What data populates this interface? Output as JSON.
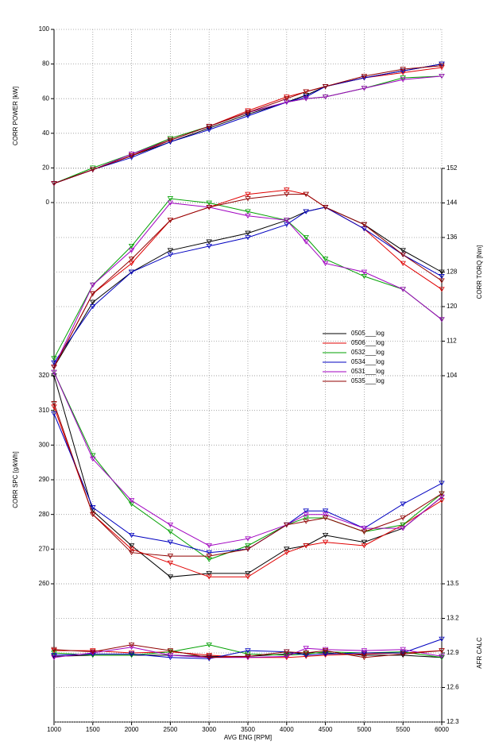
{
  "chart_data": [
    {
      "type": "line",
      "ylabel": "CORR POWER [kW]",
      "side": "left",
      "ylim": [
        0,
        100
      ],
      "yticks": [
        0,
        20,
        40,
        60,
        80,
        100
      ],
      "x": [
        1000,
        1500,
        2000,
        2500,
        3000,
        3500,
        4000,
        4250,
        4500,
        5000,
        5500,
        6000
      ],
      "series": [
        {
          "name": "0505___log",
          "color": "#000000",
          "values": [
            11,
            19,
            27,
            35,
            43,
            51,
            58,
            62,
            67,
            72,
            76,
            80
          ]
        },
        {
          "name": "0506___log",
          "color": "#e00000",
          "values": [
            11,
            19,
            27,
            37,
            44,
            53,
            61,
            64,
            67,
            72,
            75,
            78
          ]
        },
        {
          "name": "0532___log",
          "color": "#00a000",
          "values": [
            11,
            20,
            28,
            37,
            44,
            52,
            58,
            60,
            61,
            66,
            72,
            73
          ]
        },
        {
          "name": "0534___log",
          "color": "#0000c0",
          "values": [
            11,
            19,
            26,
            35,
            42,
            50,
            58,
            61,
            67,
            72,
            76,
            80
          ]
        },
        {
          "name": "0531___log",
          "color": "#a000c0",
          "values": [
            11,
            19,
            28,
            36,
            44,
            52,
            58,
            60,
            61,
            66,
            71,
            73
          ]
        },
        {
          "name": "0535___log",
          "color": "#900000",
          "values": [
            11,
            19,
            27,
            36,
            44,
            52,
            60,
            64,
            67,
            73,
            77,
            79
          ]
        }
      ]
    },
    {
      "type": "line",
      "ylabel": "CORR TORQ [Nm]",
      "side": "right",
      "ylim": [
        104,
        152
      ],
      "yticks": [
        104,
        112,
        120,
        128,
        136,
        144,
        152
      ],
      "x": [
        1000,
        1500,
        2000,
        2500,
        3000,
        3500,
        4000,
        4250,
        4500,
        5000,
        5500,
        6000
      ],
      "series": [
        {
          "name": "0505___log",
          "color": "#000000",
          "values": [
            106,
            121,
            128,
            133,
            135,
            137,
            140,
            142,
            143,
            139,
            133,
            128
          ]
        },
        {
          "name": "0506___log",
          "color": "#e00000",
          "values": [
            106,
            123,
            130,
            140,
            143,
            146,
            147,
            146,
            143,
            138,
            130,
            124
          ]
        },
        {
          "name": "0532___log",
          "color": "#00a000",
          "values": [
            108,
            125,
            134,
            145,
            144,
            142,
            140,
            136,
            131,
            127,
            124,
            117
          ]
        },
        {
          "name": "0534___log",
          "color": "#0000c0",
          "values": [
            107,
            120,
            128,
            132,
            134,
            136,
            139,
            142,
            143,
            138,
            132,
            127
          ]
        },
        {
          "name": "0531___log",
          "color": "#a000c0",
          "values": [
            106,
            125,
            133,
            144,
            143,
            141,
            140,
            135,
            130,
            128,
            124,
            117
          ]
        },
        {
          "name": "0535___log",
          "color": "#900000",
          "values": [
            106,
            123,
            131,
            140,
            143,
            145,
            146,
            146,
            143,
            139,
            132,
            126
          ]
        }
      ]
    },
    {
      "type": "line",
      "ylabel": "CORR SPC [g/kWh]",
      "side": "left",
      "ylim": [
        260,
        320
      ],
      "yticks": [
        260,
        270,
        280,
        290,
        300,
        310,
        320
      ],
      "x": [
        1000,
        1500,
        2000,
        2500,
        3000,
        3500,
        4000,
        4250,
        4500,
        5000,
        5500,
        6000
      ],
      "series": [
        {
          "name": "0505___log",
          "color": "#000000",
          "values": [
            320,
            281,
            271,
            262,
            263,
            263,
            270,
            271,
            274,
            272,
            276,
            285
          ]
        },
        {
          "name": "0506___log",
          "color": "#e00000",
          "values": [
            311,
            280,
            270,
            266,
            262,
            262,
            269,
            271,
            272,
            271,
            277,
            284
          ]
        },
        {
          "name": "0532___log",
          "color": "#00a000",
          "values": [
            321,
            297,
            283,
            275,
            267,
            271,
            277,
            279,
            279,
            275,
            277,
            286
          ]
        },
        {
          "name": "0534___log",
          "color": "#0000c0",
          "values": [
            309,
            282,
            274,
            272,
            269,
            270,
            277,
            281,
            281,
            276,
            283,
            289
          ]
        },
        {
          "name": "0531___log",
          "color": "#a000c0",
          "values": [
            321,
            296,
            284,
            277,
            271,
            273,
            277,
            280,
            280,
            276,
            276,
            285
          ]
        },
        {
          "name": "0535___log",
          "color": "#900000",
          "values": [
            312,
            280,
            269,
            268,
            268,
            270,
            277,
            278,
            279,
            275,
            279,
            286
          ]
        }
      ]
    },
    {
      "type": "line",
      "ylabel": "AFR CALC",
      "side": "right",
      "ylim": [
        12.3,
        13.5
      ],
      "yticks": [
        12.3,
        12.6,
        12.9,
        13.2,
        13.5
      ],
      "xlabel": "AVG ENG [RPM]",
      "xlim": [
        1000,
        6000
      ],
      "xticks": [
        1000,
        1500,
        2000,
        2500,
        3000,
        3500,
        4000,
        4500,
        5000,
        5500,
        6000
      ],
      "x": [
        1000,
        1500,
        2000,
        2500,
        3000,
        3500,
        4000,
        4250,
        4500,
        5000,
        5500,
        6000
      ],
      "series": [
        {
          "name": "0505___log",
          "color": "#000000",
          "values": [
            12.87,
            12.88,
            12.88,
            12.88,
            12.87,
            12.87,
            12.89,
            12.9,
            12.9,
            12.88,
            12.88,
            12.86
          ]
        },
        {
          "name": "0506___log",
          "color": "#e00000",
          "values": [
            12.92,
            12.92,
            12.9,
            12.91,
            12.88,
            12.86,
            12.86,
            12.87,
            12.88,
            12.89,
            12.9,
            12.92
          ]
        },
        {
          "name": "0532___log",
          "color": "#00a000",
          "values": [
            12.9,
            12.88,
            12.88,
            12.91,
            12.97,
            12.89,
            12.88,
            12.89,
            12.91,
            12.9,
            12.91,
            12.86
          ]
        },
        {
          "name": "0534___log",
          "color": "#0000c0",
          "values": [
            12.88,
            12.89,
            12.89,
            12.86,
            12.85,
            12.92,
            12.91,
            12.88,
            12.89,
            12.9,
            12.9,
            13.02
          ]
        },
        {
          "name": "0531___log",
          "color": "#a000c0",
          "values": [
            12.86,
            12.9,
            12.95,
            12.88,
            12.86,
            12.86,
            12.87,
            12.94,
            12.93,
            12.92,
            12.93,
            12.87
          ]
        },
        {
          "name": "0535___log",
          "color": "#900000",
          "values": [
            12.93,
            12.91,
            12.97,
            12.92,
            12.86,
            12.87,
            12.91,
            12.9,
            12.92,
            12.86,
            12.89,
            12.92
          ]
        }
      ]
    }
  ]
}
